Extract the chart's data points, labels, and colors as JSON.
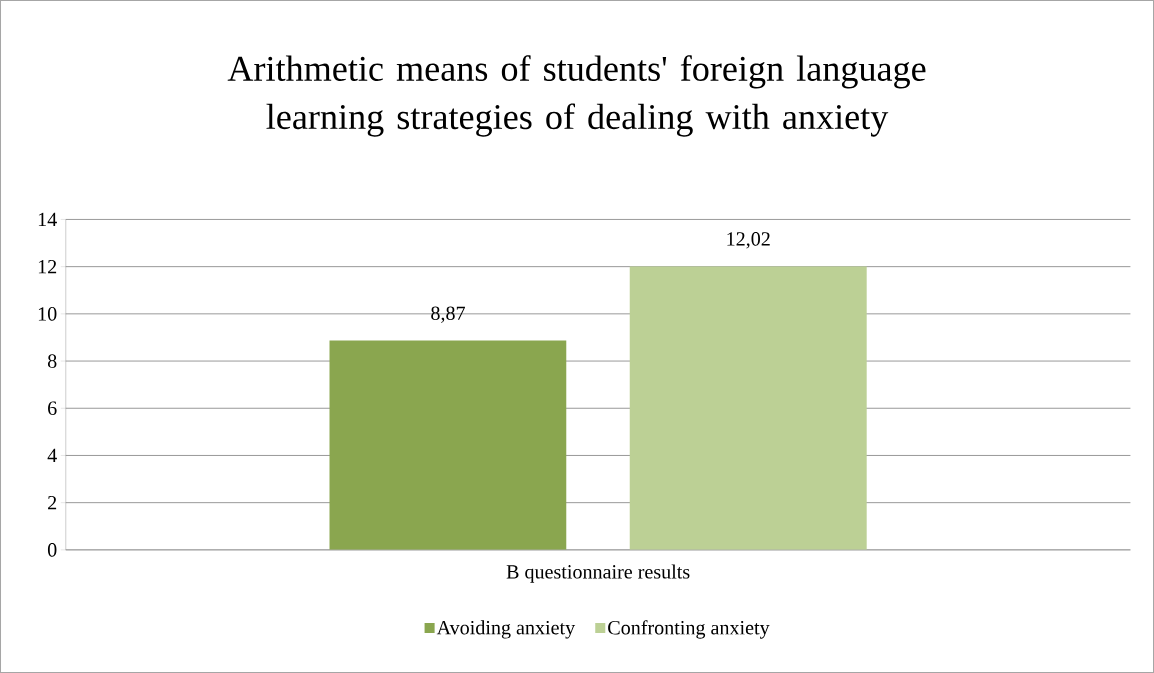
{
  "chart_data": {
    "type": "bar",
    "title": "Arithmetic means of students' foreign language learning strategies of dealing with anxiety",
    "categories": [
      "B questionnaire results"
    ],
    "series": [
      {
        "name": "Avoiding anxiety",
        "color": "#8aa64f",
        "values": [
          8.87
        ],
        "value_labels": [
          "8,87"
        ]
      },
      {
        "name": "Confronting anxiety",
        "color": "#bcd095",
        "values": [
          12.02
        ],
        "value_labels": [
          "12,02"
        ]
      }
    ],
    "ylim": [
      0,
      14
    ],
    "yticks": [
      0,
      2,
      4,
      6,
      8,
      10,
      12,
      14
    ],
    "grid": "y",
    "legend": "bottom"
  }
}
